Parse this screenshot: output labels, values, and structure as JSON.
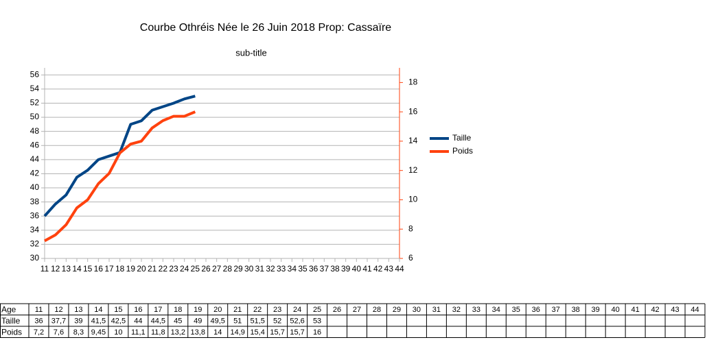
{
  "chart_data": {
    "type": "line",
    "title": "Courbe Othréis Née le 26 Juin 2018 Prop: Cassaïre",
    "subtitle": "sub-title",
    "categories": [
      11,
      12,
      13,
      14,
      15,
      16,
      17,
      18,
      19,
      20,
      21,
      22,
      23,
      24,
      25,
      26,
      27,
      28,
      29,
      30,
      31,
      32,
      33,
      34,
      35,
      36,
      37,
      38,
      39,
      40,
      41,
      42,
      43,
      44
    ],
    "series": [
      {
        "name": "Taille",
        "color": "#004586",
        "values": [
          36,
          37.7,
          39,
          41.5,
          42.5,
          44,
          44.5,
          45,
          49,
          49.5,
          51,
          51.5,
          52,
          52.6,
          53,
          null,
          null,
          null,
          null,
          null,
          null,
          null,
          null,
          null,
          null,
          null,
          null,
          null,
          null,
          null,
          null,
          null,
          null,
          null
        ],
        "value_labels": [
          "36",
          "37,7",
          "39",
          "41,5",
          "42,5",
          "44",
          "44,5",
          "45",
          "49",
          "49,5",
          "51",
          "51,5",
          "52",
          "52,6",
          "53",
          null,
          null,
          null,
          null,
          null,
          null,
          null,
          null,
          null,
          null,
          null,
          null,
          null,
          null,
          null,
          null,
          null,
          null,
          null
        ]
      },
      {
        "name": "Poids",
        "color": "#ff420e",
        "axis": "y2",
        "values": [
          7.2,
          7.6,
          8.3,
          9.45,
          10,
          11.1,
          11.8,
          13.2,
          13.8,
          14,
          14.9,
          15.4,
          15.7,
          15.7,
          16,
          null,
          null,
          null,
          null,
          null,
          null,
          null,
          null,
          null,
          null,
          null,
          null,
          null,
          null,
          null,
          null,
          null,
          null,
          null
        ],
        "value_labels": [
          "7,2",
          "7,6",
          "8,3",
          "9,45",
          "10",
          "11,1",
          "11,8",
          "13,2",
          "13,8",
          "14",
          "14,9",
          "15,4",
          "15,7",
          "15,7",
          "16",
          null,
          null,
          null,
          null,
          null,
          null,
          null,
          null,
          null,
          null,
          null,
          null,
          null,
          null,
          null,
          null,
          null,
          null,
          null
        ]
      }
    ],
    "ylim": [
      30,
      57
    ],
    "yticks": [
      30,
      32,
      34,
      36,
      38,
      40,
      42,
      44,
      46,
      48,
      50,
      52,
      54,
      56
    ],
    "y2lim": [
      6,
      19
    ],
    "y2ticks": [
      6,
      8,
      10,
      12,
      14,
      16,
      18
    ],
    "y2color": "#ff420e",
    "grid": true,
    "legend": "right"
  },
  "table": {
    "header": "Age"
  }
}
